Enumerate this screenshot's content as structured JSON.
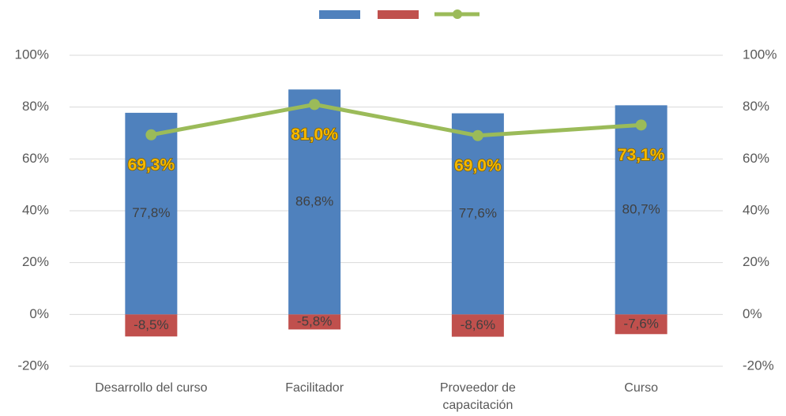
{
  "chart_data": {
    "type": "bar",
    "categories": [
      "Desarrollo del curso",
      "Facilitador",
      "Proveedor de capacitación",
      "Curso"
    ],
    "series": [
      {
        "type": "bar",
        "color": "#4f81bd",
        "values": [
          77.8,
          86.8,
          77.6,
          80.7
        ],
        "value_labels": [
          "77,8%",
          "86,8%",
          "77,6%",
          "80,7%"
        ]
      },
      {
        "type": "bar",
        "color": "#c0504d",
        "values": [
          -8.5,
          -5.8,
          -8.6,
          -7.6
        ],
        "value_labels": [
          "-8,5%",
          "-5,8%",
          "-8,6%",
          "-7,6%"
        ]
      },
      {
        "type": "line",
        "axis": "y2",
        "color": "#9bbb59",
        "values": [
          69.3,
          81.0,
          69.0,
          73.1
        ],
        "value_labels": [
          "69,3%",
          "81,0%",
          "69,0%",
          "73,1%"
        ]
      }
    ],
    "ylim": [
      -20,
      100
    ],
    "yticks": [
      {
        "value": -20,
        "label": "-20%"
      },
      {
        "value": 0,
        "label": "0%"
      },
      {
        "value": 20,
        "label": "20%"
      },
      {
        "value": 40,
        "label": "40%"
      },
      {
        "value": 60,
        "label": "60%"
      },
      {
        "value": 80,
        "label": "80%"
      },
      {
        "value": 100,
        "label": "100%"
      }
    ],
    "y2lim": [
      -20,
      100
    ],
    "y2ticks": [
      {
        "value": -20,
        "label": "-20%"
      },
      {
        "value": 0,
        "label": "0%"
      },
      {
        "value": 20,
        "label": "20%"
      },
      {
        "value": 40,
        "label": "40%"
      },
      {
        "value": 60,
        "label": "60%"
      },
      {
        "value": 80,
        "label": "80%"
      },
      {
        "value": 100,
        "label": "100%"
      }
    ],
    "grid": true,
    "legend": "top"
  }
}
